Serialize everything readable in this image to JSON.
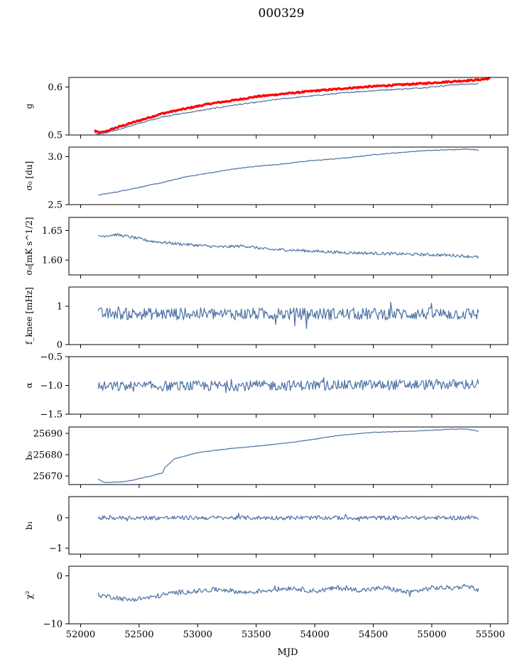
{
  "figure": {
    "title": "000329",
    "xlabel": "MJD"
  },
  "colors": {
    "series": "#4c72a4",
    "highlight": "#ff0000",
    "axis": "#000000"
  },
  "chart_data": {
    "type": "line",
    "title": "000329",
    "xlabel": "MJD",
    "xlim": [
      51900,
      55650
    ],
    "x_ticks": [
      {
        "v": 52000,
        "label": "52000"
      },
      {
        "v": 52500,
        "label": "52500"
      },
      {
        "v": 53000,
        "label": "53000"
      },
      {
        "v": 53500,
        "label": "53500"
      },
      {
        "v": 54000,
        "label": "54000"
      },
      {
        "v": 54500,
        "label": "54500"
      },
      {
        "v": 55000,
        "label": "55000"
      },
      {
        "v": 55500,
        "label": "55500"
      }
    ],
    "panels": [
      {
        "id": "g",
        "ylabel": "g",
        "ylim": [
          0.5,
          0.62
        ],
        "y_ticks": [
          {
            "v": 0.5,
            "label": "0.5"
          },
          {
            "v": 0.6,
            "label": "0.6"
          }
        ],
        "series": [
          {
            "style": "red-thick",
            "noise": 0.0015,
            "x": [
              52120,
              52150,
              52200,
              52300,
              52500,
              52700,
              52900,
              53100,
              53300,
              53500,
              53700,
              54000,
              54300,
              54600,
              54900,
              55200,
              55400,
              55500
            ],
            "y": [
              0.51,
              0.505,
              0.506,
              0.515,
              0.53,
              0.545,
              0.555,
              0.565,
              0.572,
              0.58,
              0.585,
              0.592,
              0.598,
              0.603,
              0.607,
              0.612,
              0.615,
              0.618
            ]
          },
          {
            "style": "blue",
            "noise": 0.0012,
            "x": [
              52120,
              52150,
              52200,
              52300,
              52500,
              52700,
              52900,
              53100,
              53300,
              53500,
              53700,
              54000,
              54300,
              54600,
              54900,
              55200,
              55400
            ],
            "y": [
              0.505,
              0.502,
              0.503,
              0.51,
              0.524,
              0.538,
              0.546,
              0.554,
              0.562,
              0.568,
              0.575,
              0.582,
              0.589,
              0.594,
              0.598,
              0.605,
              0.607
            ]
          }
        ]
      },
      {
        "id": "sigma0-du",
        "ylabel": "σ₀ [du]",
        "ylim": [
          2.5,
          3.1
        ],
        "y_ticks": [
          {
            "v": 2.5,
            "label": "2.5"
          },
          {
            "v": 3.0,
            "label": "3.0"
          }
        ],
        "series": [
          {
            "style": "blue",
            "noise": 0.004,
            "x": [
              52150,
              52300,
              52500,
              52700,
              52900,
              53100,
              53300,
              53500,
              53700,
              53900,
              54100,
              54300,
              54500,
              54700,
              54900,
              55100,
              55300,
              55400
            ],
            "y": [
              2.6,
              2.63,
              2.68,
              2.73,
              2.79,
              2.83,
              2.87,
              2.9,
              2.92,
              2.95,
              2.97,
              2.99,
              3.02,
              3.04,
              3.06,
              3.07,
              3.08,
              3.07
            ]
          }
        ]
      },
      {
        "id": "sigma0-mk",
        "ylabel": "σ₀[mK s^1/2]",
        "ylim": [
          1.575,
          1.672
        ],
        "y_ticks": [
          {
            "v": 1.6,
            "label": "1.60"
          },
          {
            "v": 1.65,
            "label": "1.65"
          }
        ],
        "series": [
          {
            "style": "blue",
            "noise": 0.0025,
            "x": [
              52150,
              52300,
              52400,
              52600,
              52800,
              53000,
              53200,
              53400,
              53600,
              53800,
              54000,
              54200,
              54400,
              54600,
              54800,
              55000,
              55200,
              55400
            ],
            "y": [
              1.64,
              1.643,
              1.64,
              1.632,
              1.628,
              1.625,
              1.622,
              1.624,
              1.618,
              1.617,
              1.615,
              1.613,
              1.612,
              1.611,
              1.61,
              1.609,
              1.608,
              1.605
            ]
          }
        ]
      },
      {
        "id": "fknee",
        "ylabel": "f_knee [mHz]",
        "ylim": [
          0,
          1.5
        ],
        "y_ticks": [
          {
            "v": 0,
            "label": "0"
          },
          {
            "v": 1,
            "label": "1"
          }
        ],
        "series": [
          {
            "style": "blue",
            "noise": 0.16,
            "x": [
              52150,
              55400
            ],
            "y": [
              0.8,
              0.8
            ]
          }
        ]
      },
      {
        "id": "alpha",
        "ylabel": "α",
        "ylim": [
          -1.5,
          -0.5
        ],
        "y_ticks": [
          {
            "v": -1.5,
            "label": "−1.5"
          },
          {
            "v": -1.0,
            "label": "−1.0"
          },
          {
            "v": -0.5,
            "label": "−0.5"
          }
        ],
        "series": [
          {
            "style": "blue",
            "noise": 0.09,
            "x": [
              52150,
              55400
            ],
            "y": [
              -1.02,
              -0.98
            ]
          }
        ]
      },
      {
        "id": "b0",
        "ylabel": "b₀",
        "ylim": [
          25666,
          25693
        ],
        "y_ticks": [
          {
            "v": 25670,
            "label": "25670"
          },
          {
            "v": 25680,
            "label": "25680"
          },
          {
            "v": 25690,
            "label": "25690"
          }
        ],
        "series": [
          {
            "style": "blue",
            "noise": 0.12,
            "x": [
              52150,
              52200,
              52250,
              52400,
              52600,
              52700,
              52720,
              52800,
              53000,
              53300,
              53600,
              53900,
              54200,
              54500,
              54800,
              55000,
              55200,
              55300,
              55400
            ],
            "y": [
              25668.5,
              25667,
              25667,
              25667.5,
              25670,
              25671.5,
              25674,
              25678,
              25681,
              25683,
              25684.5,
              25686.5,
              25689,
              25690.5,
              25691,
              25691.5,
              25692,
              25692,
              25691
            ]
          }
        ]
      },
      {
        "id": "b1",
        "ylabel": "b₁",
        "ylim": [
          -1.2,
          0.7
        ],
        "y_ticks": [
          {
            "v": -1,
            "label": "−1"
          },
          {
            "v": 0,
            "label": "0"
          }
        ],
        "series": [
          {
            "style": "blue",
            "noise": 0.07,
            "x": [
              52150,
              55400
            ],
            "y": [
              0,
              0
            ]
          }
        ]
      },
      {
        "id": "chi2",
        "ylabel": "χ²",
        "ylim": [
          -10,
          2
        ],
        "y_ticks": [
          {
            "v": -10,
            "label": "−10"
          },
          {
            "v": 0,
            "label": "0"
          }
        ],
        "series": [
          {
            "style": "blue",
            "noise": 0.5,
            "x": [
              52150,
              52300,
              52400,
              52600,
              52800,
              53000,
              53200,
              53400,
              53600,
              53800,
              54000,
              54200,
              54400,
              54600,
              54800,
              55000,
              55200,
              55300,
              55400
            ],
            "y": [
              -4,
              -4.5,
              -5,
              -4.5,
              -3.5,
              -3.2,
              -2.8,
              -3.5,
              -3,
              -2.5,
              -3.2,
              -2.5,
              -3,
              -2.5,
              -3.5,
              -2.5,
              -2.5,
              -2,
              -3
            ]
          }
        ]
      }
    ]
  }
}
